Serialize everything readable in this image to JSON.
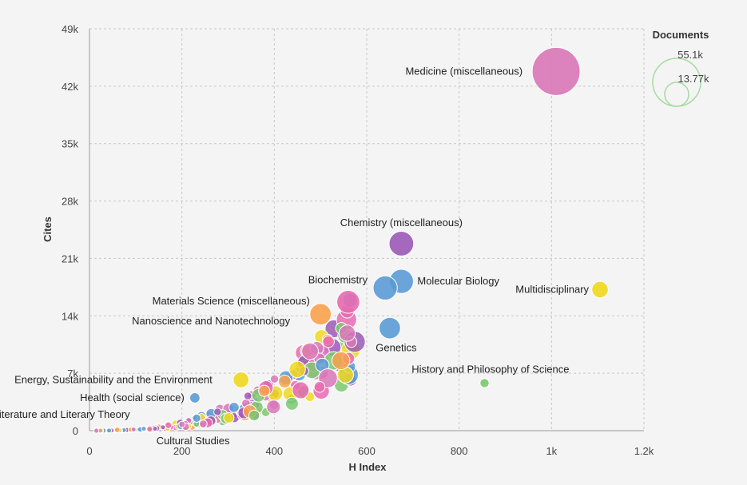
{
  "chart_data": {
    "type": "bubble",
    "xlabel": "H Index",
    "ylabel": "Cites",
    "xlim": [
      0,
      1200
    ],
    "ylim": [
      0,
      49000
    ],
    "x_ticks": [
      {
        "v": 0,
        "t": "0"
      },
      {
        "v": 200,
        "t": "200"
      },
      {
        "v": 400,
        "t": "400"
      },
      {
        "v": 600,
        "t": "600"
      },
      {
        "v": 800,
        "t": "800"
      },
      {
        "v": 1000,
        "t": "1k"
      },
      {
        "v": 1200,
        "t": "1.2k"
      }
    ],
    "y_ticks": [
      {
        "v": 0,
        "t": "0"
      },
      {
        "v": 7000,
        "t": "7k"
      },
      {
        "v": 14000,
        "t": "14k"
      },
      {
        "v": 21000,
        "t": "21k"
      },
      {
        "v": 28000,
        "t": "28k"
      },
      {
        "v": 35000,
        "t": "35k"
      },
      {
        "v": 42000,
        "t": "42k"
      },
      {
        "v": 49000,
        "t": "49k"
      }
    ],
    "legend": {
      "title": "Documents",
      "max_label": "55.1k",
      "mid_label": "13.77k",
      "max_value": 55100,
      "mid_value": 13770,
      "color": "#a6dba0"
    },
    "labeled_points": [
      {
        "name": "Medicine (miscellaneous)",
        "x": 1010,
        "y": 43800,
        "size": 55100,
        "color": "#d977b8"
      },
      {
        "name": "Chemistry (miscellaneous)",
        "x": 675,
        "y": 22800,
        "size": 14500,
        "color": "#9b59b6"
      },
      {
        "name": "Multidisciplinary",
        "x": 1105,
        "y": 17200,
        "size": 6500,
        "color": "#f1d81e"
      },
      {
        "name": "Molecular Biology",
        "x": 675,
        "y": 18200,
        "size": 14000,
        "color": "#5b9bd5"
      },
      {
        "name": "Biochemistry",
        "x": 640,
        "y": 17400,
        "size": 14000,
        "color": "#5b9bd5"
      },
      {
        "name": "Materials Science (miscellaneous)",
        "x": 560,
        "y": 15700,
        "size": 12500,
        "color": "#e86ab0"
      },
      {
        "name": "Nanoscience and Nanotechnology",
        "x": 500,
        "y": 14200,
        "size": 11000,
        "color": "#f9a24c"
      },
      {
        "name": "Genetics",
        "x": 650,
        "y": 12500,
        "size": 11000,
        "color": "#5b9bd5"
      },
      {
        "name": "History and Philosophy of Science",
        "x": 855,
        "y": 5800,
        "size": 2000,
        "color": "#7bc96f"
      },
      {
        "name": "Energy, Sustainability and the Environment",
        "x": 328,
        "y": 6200,
        "size": 6000,
        "color": "#f1d81e"
      },
      {
        "name": "Health (social science)",
        "x": 228,
        "y": 4000,
        "size": 2500,
        "color": "#5b9bd5"
      },
      {
        "name": "Literature and Literary Theory",
        "x": 15,
        "y": 0,
        "size": 600,
        "color": "#d977b8"
      },
      {
        "name": "Cultural Studies",
        "x": 60,
        "y": 100,
        "size": 700,
        "color": "#f9a24c"
      }
    ],
    "labels": [
      {
        "id": "lbl_medicine",
        "text": "Medicine (miscellaneous)",
        "x": 1010,
        "y": 43800,
        "anchor": "end",
        "dx": -42,
        "dy": 4
      },
      {
        "id": "lbl_chemistry",
        "text": "Chemistry (miscellaneous)",
        "x": 675,
        "y": 22800,
        "anchor": "middle",
        "dx": 0,
        "dy": -22
      },
      {
        "id": "lbl_multidisciplinary",
        "text": "Multidisciplinary",
        "x": 1105,
        "y": 17200,
        "anchor": "end",
        "dx": -14,
        "dy": 4
      },
      {
        "id": "lbl_molecular",
        "text": "Molecular Biology",
        "x": 675,
        "y": 18200,
        "anchor": "start",
        "dx": 20,
        "dy": 4
      },
      {
        "id": "lbl_biochem",
        "text": "Biochemistry",
        "x": 640,
        "y": 17400,
        "anchor": "end",
        "dx": -22,
        "dy": -6
      },
      {
        "id": "lbl_materials",
        "text": "Materials Science (miscellaneous)",
        "x": 560,
        "y": 15700,
        "anchor": "end",
        "dx": -48,
        "dy": 3
      },
      {
        "id": "lbl_nano",
        "text": "Nanoscience and Nanotechnology",
        "x": 500,
        "y": 14200,
        "anchor": "end",
        "dx": -38,
        "dy": 13
      },
      {
        "id": "lbl_genetics",
        "text": "Genetics",
        "x": 650,
        "y": 12500,
        "anchor": "middle",
        "dx": 8,
        "dy": 29
      },
      {
        "id": "lbl_history",
        "text": "History and Philosophy of Science",
        "x": 855,
        "y": 5800,
        "anchor": "end",
        "dx": 106,
        "dy": -13
      },
      {
        "id": "lbl_energy",
        "text": "Energy, Sustainability and the Environment",
        "x": 328,
        "y": 6200,
        "anchor": "end",
        "dx": -36,
        "dy": 4
      },
      {
        "id": "lbl_health",
        "text": "Health (social science)",
        "x": 228,
        "y": 4000,
        "anchor": "end",
        "dx": -13,
        "dy": 4
      },
      {
        "id": "lbl_literature",
        "text": "Literature and Literary Theory",
        "x": 15,
        "y": 0,
        "anchor": "end",
        "dx": 42,
        "dy": -16
      },
      {
        "id": "lbl_cultural",
        "text": "Cultural Studies",
        "x": 60,
        "y": 100,
        "anchor": "start",
        "dx": 49,
        "dy": 18
      }
    ]
  }
}
